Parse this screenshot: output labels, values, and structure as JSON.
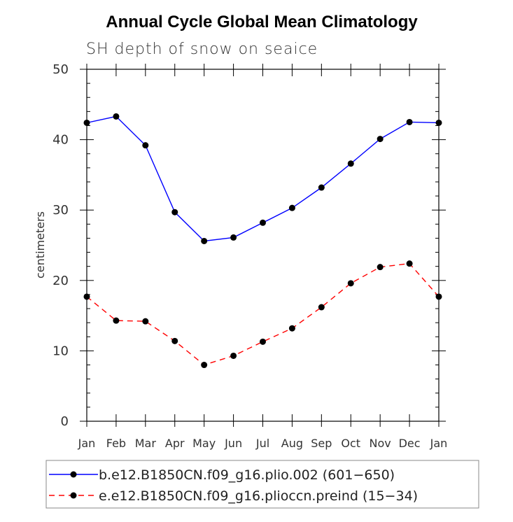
{
  "chart_data": {
    "type": "line",
    "title": "Annual Cycle Global Mean Climatology",
    "subtitle": "SH depth of snow on seaice",
    "xlabel": "",
    "ylabel": "centimeters",
    "categories": [
      "Jan",
      "Feb",
      "Mar",
      "Apr",
      "May",
      "Jun",
      "Jul",
      "Aug",
      "Sep",
      "Oct",
      "Nov",
      "Dec",
      "Jan"
    ],
    "ylim": [
      0,
      50
    ],
    "yticks": [
      0,
      10,
      20,
      30,
      40,
      50
    ],
    "ytick_labels": [
      "0",
      "10",
      "20",
      "30",
      "40",
      "50"
    ],
    "series": [
      {
        "name": "b.e12.B1850CN.f09_g16.plio.002 (601−650)",
        "color": "#0000ff",
        "dash": "solid",
        "values": [
          42.4,
          43.3,
          39.2,
          29.7,
          25.6,
          26.1,
          28.2,
          30.3,
          33.2,
          36.6,
          40.1,
          42.5,
          42.4
        ]
      },
      {
        "name": "e.e12.B1850CN.f09_g16.plioccn.preind (15−34)",
        "color": "#ff0000",
        "dash": "dashed",
        "values": [
          17.7,
          14.3,
          14.2,
          11.4,
          8.0,
          9.3,
          11.3,
          13.2,
          16.2,
          19.6,
          21.9,
          22.4,
          17.7
        ]
      }
    ],
    "legend_position": "bottom"
  }
}
